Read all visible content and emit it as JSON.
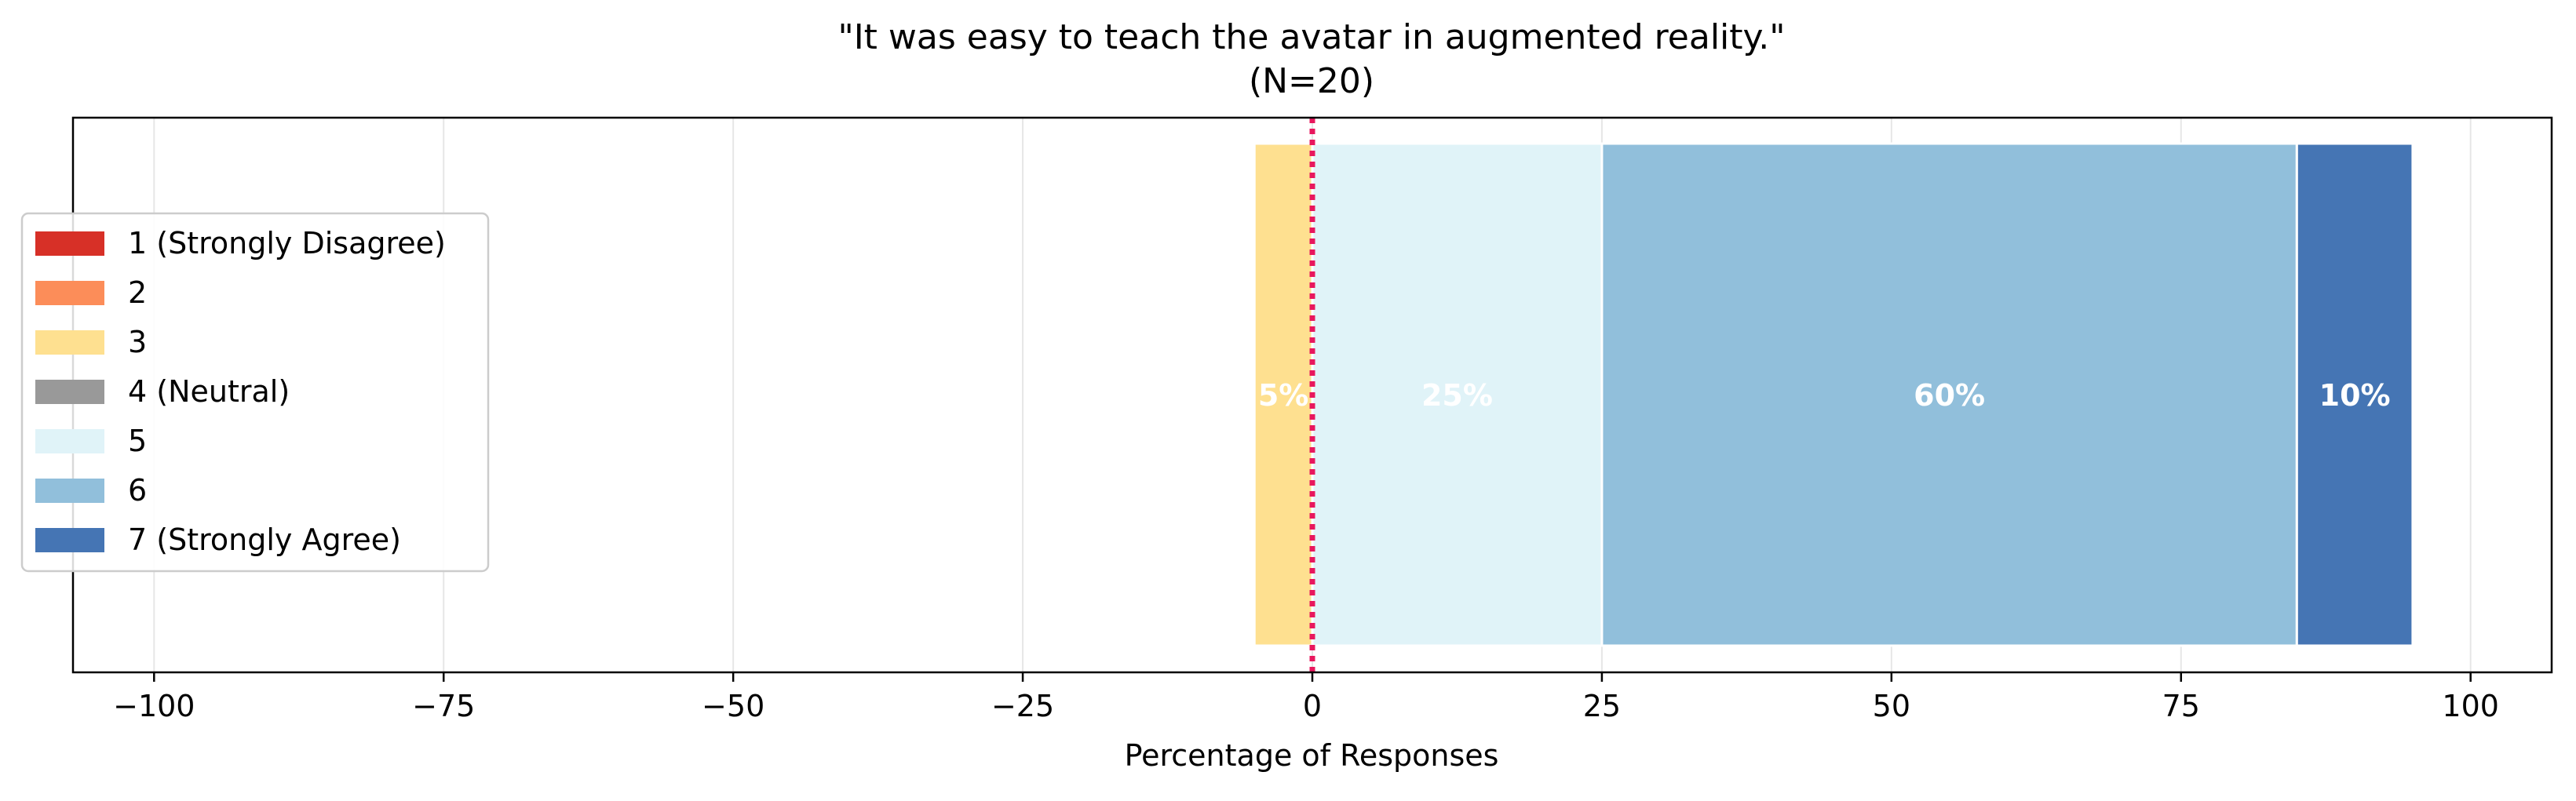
{
  "chart_data": {
    "type": "bar",
    "orientation": "horizontal",
    "stacked": "diverging",
    "title": "\"It was easy to teach the avatar in augmented reality.\"",
    "subtitle": "(N=20)",
    "xlabel": "Percentage of Responses",
    "ylabel": "",
    "xlim": [
      -107,
      107
    ],
    "xticks": [
      -100,
      -75,
      -50,
      -25,
      0,
      25,
      50,
      75,
      100
    ],
    "xtick_labels": [
      "−100",
      "−75",
      "−50",
      "−25",
      "0",
      "25",
      "50",
      "75",
      "100"
    ],
    "grid": "vertical",
    "zero_line": {
      "value": 0,
      "style": "dotted",
      "color": "#e8175d"
    },
    "legend_position": "center-left",
    "series": [
      {
        "name": "1 (Strongly Disagree)",
        "value": 0,
        "color": "#d73027",
        "label": ""
      },
      {
        "name": "2",
        "value": 0,
        "color": "#fc8d59",
        "label": ""
      },
      {
        "name": "3",
        "value": 5,
        "color": "#fee090",
        "label": "5%",
        "side": "negative"
      },
      {
        "name": "4 (Neutral)",
        "value": 0,
        "color": "#999999",
        "label": ""
      },
      {
        "name": "5",
        "value": 25,
        "color": "#e0f3f8",
        "label": "25%",
        "side": "positive"
      },
      {
        "name": "6",
        "value": 60,
        "color": "#91bfdb",
        "label": "60%",
        "side": "positive"
      },
      {
        "name": "7 (Strongly Agree)",
        "value": 10,
        "color": "#4575b4",
        "label": "10%",
        "side": "positive"
      }
    ]
  }
}
